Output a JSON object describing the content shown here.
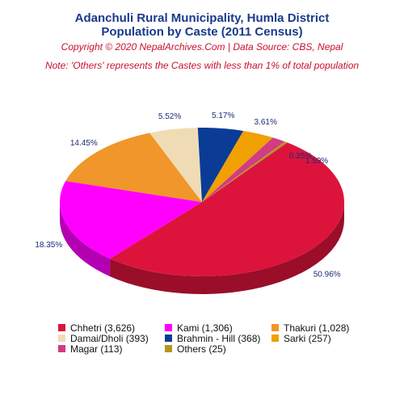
{
  "chart_data": {
    "type": "pie",
    "title_line1": "Adanchuli Rural Municipality, Humla District",
    "title_line2": "Population by Caste (2011 Census)",
    "copyright": "Copyright © 2020 NepalArchives.Com | Data Source: CBS, Nepal",
    "note": "Note: 'Others' represents the Castes with less than 1% of total population",
    "slices": [
      {
        "name": "Chhetri",
        "value": 3626,
        "percent": "50.96%",
        "legend": "Chhetri (3,626)",
        "color": "#dc143c"
      },
      {
        "name": "Kami",
        "value": 1306,
        "percent": "18.35%",
        "legend": "Kami (1,306)",
        "color": "#ff00ff"
      },
      {
        "name": "Thakuri",
        "value": 1028,
        "percent": "14.45%",
        "legend": "Thakuri (1,028)",
        "color": "#f0962a"
      },
      {
        "name": "Damai/Dholi",
        "value": 393,
        "percent": "5.52%",
        "legend": "Damai/Dholi (393)",
        "color": "#f0dcb4"
      },
      {
        "name": "Brahmin - Hill",
        "value": 368,
        "percent": "5.17%",
        "legend": "Brahmin - Hill (368)",
        "color": "#0a3c96"
      },
      {
        "name": "Sarki",
        "value": 257,
        "percent": "3.61%",
        "legend": "Sarki (257)",
        "color": "#f0a000"
      },
      {
        "name": "Magar",
        "value": 113,
        "percent": "1.59%",
        "legend": "Magar (113)",
        "color": "#d23c82"
      },
      {
        "name": "Others",
        "value": 25,
        "percent": "0.35%",
        "legend": "Others (25)",
        "color": "#b4961e"
      }
    ]
  }
}
